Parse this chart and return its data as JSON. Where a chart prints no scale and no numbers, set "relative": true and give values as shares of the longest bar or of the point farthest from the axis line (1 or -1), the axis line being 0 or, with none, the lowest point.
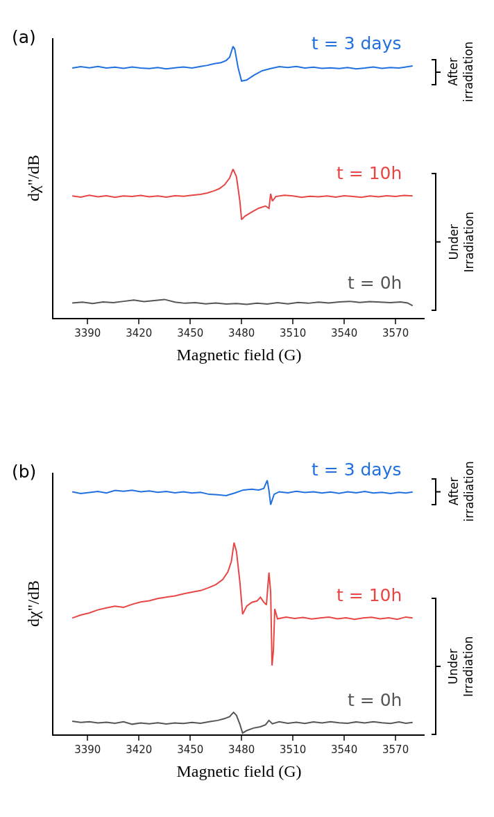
{
  "chart_data": [
    {
      "type": "line",
      "relative": true,
      "xlim": [
        3370,
        3587
      ],
      "xticks": [
        3390,
        3420,
        3450,
        3480,
        3510,
        3540,
        3570
      ],
      "xlabel": "Magnetic field (G)",
      "ylabel": "dχ\"/dB",
      "annotations": [
        "(a)",
        "After\nirradiation",
        "Under\nIrradiation"
      ],
      "series": [
        {
          "name": "t = 3 days",
          "color": "#2070e0",
          "x": [
            3381,
            3386,
            3391,
            3396,
            3401,
            3406,
            3411,
            3416,
            3421,
            3426,
            3431,
            3436,
            3441,
            3446,
            3451,
            3456,
            3460,
            3464,
            3468,
            3471,
            3473,
            3475,
            3476,
            3478,
            3480,
            3483,
            3487,
            3492,
            3497,
            3502,
            3507,
            3512,
            3517,
            3522,
            3527,
            3532,
            3537,
            3542,
            3547,
            3552,
            3557,
            3562,
            3567,
            3572,
            3576,
            3580
          ],
          "values": [
            0.92,
            0.925,
            0.921,
            0.926,
            0.92,
            0.923,
            0.919,
            0.924,
            0.92,
            0.918,
            0.922,
            0.917,
            0.921,
            0.924,
            0.92,
            0.926,
            0.93,
            0.936,
            0.94,
            0.948,
            0.96,
            1.0,
            0.99,
            0.92,
            0.872,
            0.876,
            0.893,
            0.91,
            0.918,
            0.925,
            0.922,
            0.926,
            0.92,
            0.923,
            0.919,
            0.921,
            0.918,
            0.922,
            0.917,
            0.92,
            0.924,
            0.919,
            0.922,
            0.92,
            0.924,
            0.928
          ]
        },
        {
          "name": "t = 10h",
          "color": "#e84545",
          "x": [
            3381,
            3386,
            3391,
            3396,
            3401,
            3406,
            3411,
            3416,
            3421,
            3426,
            3431,
            3436,
            3441,
            3446,
            3451,
            3456,
            3460,
            3464,
            3467,
            3470,
            3473,
            3475,
            3477,
            3479,
            3480,
            3482,
            3486,
            3490,
            3494,
            3496,
            3497,
            3498,
            3500,
            3505,
            3510,
            3515,
            3520,
            3525,
            3530,
            3535,
            3540,
            3545,
            3550,
            3555,
            3560,
            3565,
            3570,
            3575,
            3580
          ],
          "values": [
            0.449,
            0.445,
            0.452,
            0.446,
            0.45,
            0.444,
            0.449,
            0.447,
            0.451,
            0.446,
            0.449,
            0.445,
            0.45,
            0.448,
            0.452,
            0.455,
            0.46,
            0.468,
            0.476,
            0.49,
            0.515,
            0.548,
            0.52,
            0.43,
            0.362,
            0.375,
            0.39,
            0.404,
            0.412,
            0.403,
            0.457,
            0.43,
            0.447,
            0.452,
            0.449,
            0.444,
            0.448,
            0.446,
            0.449,
            0.445,
            0.45,
            0.447,
            0.444,
            0.449,
            0.446,
            0.45,
            0.447,
            0.451,
            0.449
          ]
        },
        {
          "name": "t = 0h",
          "color": "#555555",
          "x": [
            3381,
            3387,
            3393,
            3399,
            3405,
            3411,
            3417,
            3423,
            3429,
            3435,
            3441,
            3447,
            3453,
            3459,
            3465,
            3471,
            3477,
            3483,
            3489,
            3495,
            3501,
            3507,
            3513,
            3519,
            3525,
            3531,
            3537,
            3543,
            3549,
            3555,
            3561,
            3567,
            3573,
            3577,
            3580
          ],
          "values": [
            0.055,
            0.058,
            0.053,
            0.059,
            0.056,
            0.061,
            0.066,
            0.06,
            0.064,
            0.068,
            0.058,
            0.054,
            0.056,
            0.052,
            0.055,
            0.051,
            0.053,
            0.05,
            0.054,
            0.051,
            0.056,
            0.052,
            0.057,
            0.054,
            0.058,
            0.055,
            0.059,
            0.061,
            0.057,
            0.06,
            0.058,
            0.056,
            0.059,
            0.055,
            0.045
          ]
        }
      ]
    },
    {
      "type": "line",
      "relative": true,
      "xlim": [
        3370,
        3587
      ],
      "xticks": [
        3390,
        3420,
        3450,
        3480,
        3510,
        3540,
        3570
      ],
      "xlabel": "Magnetic field (G)",
      "ylabel": "dχ\"/dB",
      "annotations": [
        "(b)",
        "After\nirradiation",
        "Under\nIrradiation"
      ],
      "series": [
        {
          "name": "t = 3 days",
          "color": "#2070e0",
          "x": [
            3381,
            3386,
            3391,
            3396,
            3401,
            3406,
            3411,
            3416,
            3421,
            3426,
            3431,
            3436,
            3441,
            3446,
            3451,
            3456,
            3461,
            3466,
            3471,
            3476,
            3481,
            3486,
            3490,
            3493,
            3495,
            3496,
            3497,
            3499,
            3502,
            3507,
            3512,
            3517,
            3522,
            3527,
            3532,
            3537,
            3542,
            3547,
            3552,
            3557,
            3562,
            3567,
            3572,
            3576,
            3580
          ],
          "values": [
            0.955,
            0.948,
            0.952,
            0.956,
            0.95,
            0.96,
            0.957,
            0.961,
            0.955,
            0.958,
            0.953,
            0.956,
            0.951,
            0.955,
            0.95,
            0.953,
            0.945,
            0.943,
            0.94,
            0.95,
            0.962,
            0.965,
            0.962,
            0.968,
            1.0,
            0.96,
            0.904,
            0.945,
            0.955,
            0.951,
            0.957,
            0.952,
            0.955,
            0.95,
            0.954,
            0.949,
            0.955,
            0.951,
            0.956,
            0.95,
            0.953,
            0.948,
            0.953,
            0.95,
            0.954
          ]
        },
        {
          "name": "t = 10h",
          "color": "#e84545",
          "x": [
            3381,
            3386,
            3391,
            3396,
            3401,
            3406,
            3411,
            3416,
            3421,
            3426,
            3431,
            3436,
            3441,
            3446,
            3451,
            3456,
            3461,
            3465,
            3469,
            3472,
            3474,
            3475.6,
            3477,
            3479,
            3480.6,
            3483,
            3486,
            3489,
            3491,
            3493,
            3494.5,
            3496,
            3497,
            3497.8,
            3498.6,
            3499.4,
            3501,
            3506,
            3511,
            3516,
            3521,
            3526,
            3531,
            3536,
            3541,
            3546,
            3551,
            3556,
            3561,
            3566,
            3571,
            3576,
            3580
          ],
          "values": [
            0.458,
            0.47,
            0.478,
            0.49,
            0.498,
            0.505,
            0.5,
            0.512,
            0.521,
            0.526,
            0.535,
            0.54,
            0.545,
            0.553,
            0.56,
            0.566,
            0.578,
            0.59,
            0.61,
            0.64,
            0.68,
            0.755,
            0.72,
            0.6,
            0.473,
            0.505,
            0.52,
            0.525,
            0.54,
            0.52,
            0.51,
            0.637,
            0.56,
            0.271,
            0.33,
            0.494,
            0.455,
            0.462,
            0.456,
            0.46,
            0.454,
            0.458,
            0.462,
            0.455,
            0.459,
            0.453,
            0.458,
            0.461,
            0.455,
            0.459,
            0.453,
            0.462,
            0.458
          ]
        },
        {
          "name": "t = 0h",
          "color": "#555555",
          "x": [
            3381,
            3386,
            3391,
            3396,
            3401,
            3406,
            3411,
            3416,
            3421,
            3426,
            3431,
            3436,
            3441,
            3446,
            3451,
            3456,
            3461,
            3466,
            3470,
            3473,
            3475.3,
            3477,
            3479,
            3480.6,
            3483,
            3487,
            3491,
            3494,
            3496,
            3498,
            3502,
            3507,
            3512,
            3517,
            3522,
            3527,
            3532,
            3537,
            3542,
            3547,
            3552,
            3557,
            3562,
            3567,
            3572,
            3576,
            3580
          ],
          "values": [
            0.052,
            0.047,
            0.05,
            0.045,
            0.048,
            0.044,
            0.05,
            0.04,
            0.045,
            0.042,
            0.046,
            0.041,
            0.045,
            0.043,
            0.047,
            0.044,
            0.05,
            0.055,
            0.062,
            0.07,
            0.087,
            0.075,
            0.04,
            0.005,
            0.015,
            0.025,
            0.03,
            0.038,
            0.055,
            0.042,
            0.05,
            0.044,
            0.048,
            0.043,
            0.049,
            0.045,
            0.05,
            0.046,
            0.044,
            0.049,
            0.045,
            0.05,
            0.046,
            0.043,
            0.049,
            0.044,
            0.047
          ]
        }
      ]
    }
  ]
}
